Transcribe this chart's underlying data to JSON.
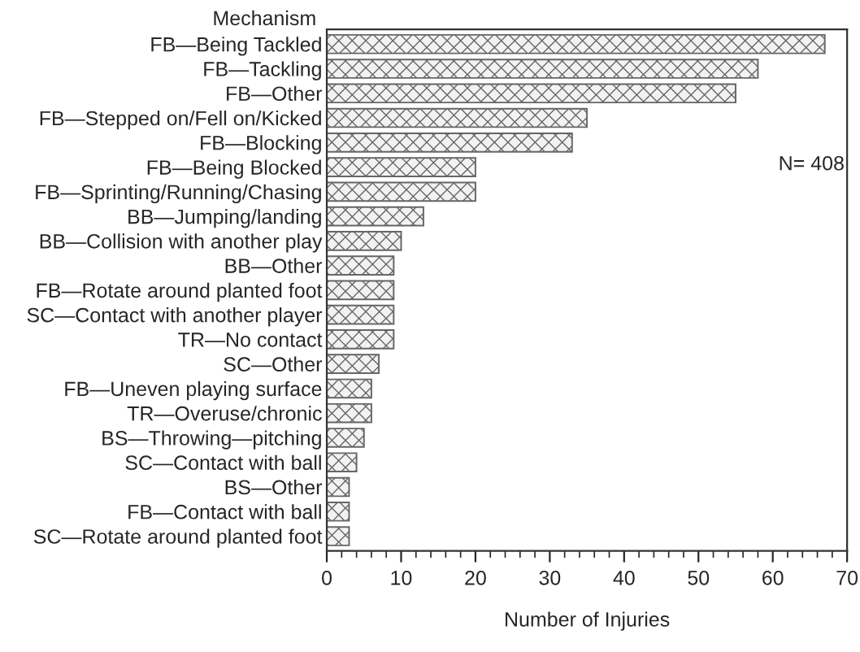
{
  "chart_data": {
    "type": "bar",
    "orientation": "horizontal",
    "ylabel": "Mechanism",
    "xlabel": "Number of Injuries",
    "categories": [
      "FB—Being Tackled",
      "FB—Tackling",
      "FB—Other",
      "FB—Stepped on/Fell on/Kicked",
      "FB—Blocking",
      "FB—Being Blocked",
      "FB—Sprinting/Running/Chasing",
      "BB—Jumping/landing",
      "BB—Collision with another play",
      "BB—Other",
      "FB—Rotate around planted foot",
      "SC—Contact with another player",
      "TR—No contact",
      "SC—Other",
      "FB—Uneven playing surface",
      "TR—Overuse/chronic",
      "BS—Throwing—pitching",
      "SC—Contact with ball",
      "BS—Other",
      "FB—Contact with ball",
      "SC—Rotate around planted foot"
    ],
    "values": [
      67,
      58,
      55,
      35,
      33,
      20,
      20,
      13,
      10,
      9,
      9,
      9,
      9,
      7,
      6,
      6,
      5,
      4,
      3,
      3,
      3
    ],
    "color": "#666666",
    "xlim": [
      0,
      70
    ],
    "xticks": [
      0,
      10,
      20,
      30,
      40,
      50,
      60,
      70
    ],
    "annotations": [
      "N= 408"
    ],
    "grid": false,
    "legend": false
  }
}
